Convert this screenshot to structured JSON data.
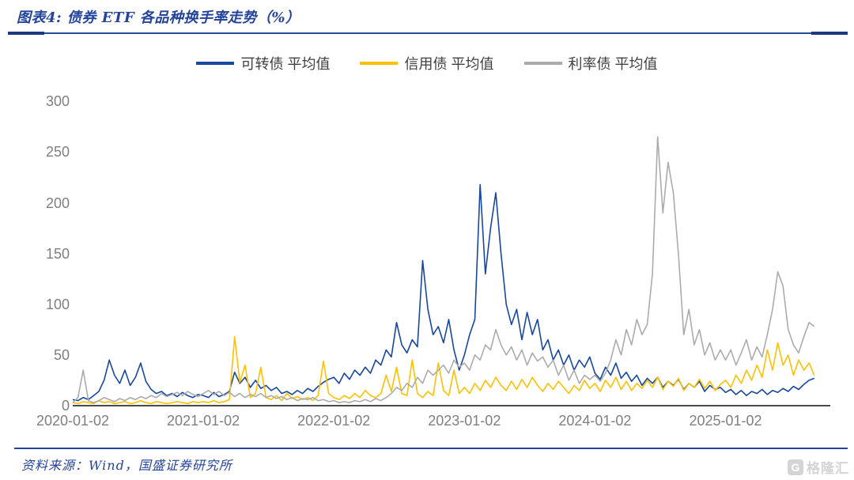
{
  "figure_title": "图表4: 债券 ETF 各品种换手率走势（%）",
  "source": "资料来源：Wind，国盛证券研究所",
  "watermark": {
    "icon": "G",
    "text": "格隆汇"
  },
  "theme": {
    "caption_navy": "#24439B",
    "rule_navy": "#1B3A80",
    "axis_label_gray": "#7F7F7F",
    "axis_line_gray": "#4A4A4A",
    "legend_text": "#3F3F3F"
  },
  "chart_data": {
    "type": "line",
    "title": "债券 ETF 各品种换手率走势（%）",
    "xlabel": "",
    "ylabel": "",
    "grid": false,
    "legend_position": "top",
    "ylim": [
      0,
      300
    ],
    "yticks": [
      0,
      50,
      100,
      150,
      200,
      250,
      300
    ],
    "x_tick_labels": [
      "2020-01-02",
      "2021-01-02",
      "2022-01-02",
      "2023-01-02",
      "2024-01-02",
      "2025-01-02"
    ],
    "x_unit": "years since 2020-01-02 (fractional)",
    "x_start": 2020,
    "x_step": 0.04,
    "series": [
      {
        "id": "convertible-bond",
        "name": "可转债 平均值",
        "color": "#17479E",
        "values": [
          6,
          5,
          8,
          6,
          10,
          14,
          25,
          45,
          30,
          22,
          35,
          20,
          28,
          42,
          24,
          16,
          12,
          14,
          10,
          12,
          9,
          13,
          10,
          8,
          11,
          10,
          8,
          13,
          9,
          11,
          14,
          33,
          22,
          28,
          18,
          25,
          17,
          20,
          15,
          18,
          12,
          14,
          11,
          15,
          12,
          17,
          14,
          19,
          23,
          26,
          28,
          22,
          32,
          26,
          35,
          30,
          38,
          32,
          45,
          40,
          55,
          48,
          82,
          60,
          52,
          65,
          58,
          143,
          95,
          70,
          78,
          62,
          85,
          55,
          35,
          50,
          70,
          85,
          218,
          130,
          175,
          210,
          150,
          100,
          80,
          95,
          65,
          92,
          70,
          85,
          55,
          65,
          45,
          55,
          40,
          50,
          35,
          45,
          38,
          48,
          32,
          26,
          38,
          30,
          42,
          27,
          33,
          24,
          30,
          20,
          27,
          22,
          28,
          18,
          24,
          20,
          26,
          16,
          22,
          18,
          24,
          14,
          20,
          16,
          18,
          13,
          16,
          11,
          15,
          10,
          14,
          12,
          16,
          11,
          15,
          13,
          17,
          14,
          19,
          16,
          21,
          25,
          27
        ]
      },
      {
        "id": "credit-bond",
        "name": "信用债 平均值",
        "color": "#FFC000",
        "values": [
          3,
          2,
          4,
          3,
          2,
          5,
          3,
          4,
          2,
          3,
          4,
          2,
          3,
          5,
          3,
          2,
          4,
          3,
          2,
          3,
          4,
          3,
          2,
          4,
          3,
          4,
          3,
          5,
          3,
          4,
          6,
          68,
          23,
          40,
          8,
          12,
          38,
          8,
          6,
          10,
          5,
          12,
          7,
          9,
          6,
          8,
          5,
          10,
          44,
          12,
          8,
          6,
          10,
          7,
          12,
          8,
          15,
          10,
          8,
          12,
          30,
          14,
          38,
          12,
          10,
          45,
          12,
          8,
          14,
          10,
          42,
          15,
          10,
          35,
          12,
          18,
          12,
          22,
          15,
          25,
          18,
          28,
          20,
          15,
          24,
          16,
          26,
          18,
          28,
          20,
          14,
          22,
          16,
          24,
          18,
          12,
          20,
          15,
          25,
          17,
          22,
          14,
          25,
          18,
          28,
          16,
          24,
          15,
          22,
          17,
          25,
          18,
          28,
          16,
          24,
          19,
          27,
          15,
          22,
          18,
          26,
          17,
          24,
          15,
          21,
          25,
          18,
          30,
          22,
          35,
          25,
          40,
          28,
          55,
          35,
          62,
          40,
          50,
          30,
          45,
          35,
          42,
          30
        ]
      },
      {
        "id": "rate-bond",
        "name": "利率债 平均值",
        "color": "#ABABAB",
        "values": [
          3,
          8,
          35,
          5,
          3,
          5,
          8,
          6,
          4,
          7,
          5,
          8,
          6,
          9,
          7,
          10,
          8,
          12,
          9,
          11,
          13,
          10,
          14,
          11,
          9,
          12,
          15,
          11,
          14,
          10,
          13,
          9,
          12,
          8,
          11,
          9,
          12,
          8,
          10,
          7,
          9,
          6,
          8,
          5,
          7,
          6,
          8,
          5,
          6,
          4,
          5,
          3,
          4,
          3,
          5,
          4,
          6,
          4,
          7,
          5,
          8,
          12,
          18,
          15,
          22,
          18,
          28,
          22,
          35,
          30,
          35,
          40,
          32,
          45,
          38,
          42,
          35,
          50,
          45,
          60,
          55,
          75,
          60,
          50,
          58,
          45,
          55,
          40,
          52,
          44,
          48,
          38,
          45,
          30,
          40,
          25,
          35,
          22,
          30,
          26,
          30,
          24,
          32,
          45,
          65,
          50,
          75,
          60,
          85,
          70,
          80,
          130,
          265,
          190,
          240,
          210,
          148,
          70,
          95,
          60,
          75,
          50,
          62,
          45,
          55,
          45,
          55,
          40,
          52,
          65,
          45,
          58,
          48,
          70,
          95,
          132,
          118,
          75,
          60,
          52,
          68,
          82,
          78
        ]
      }
    ]
  }
}
